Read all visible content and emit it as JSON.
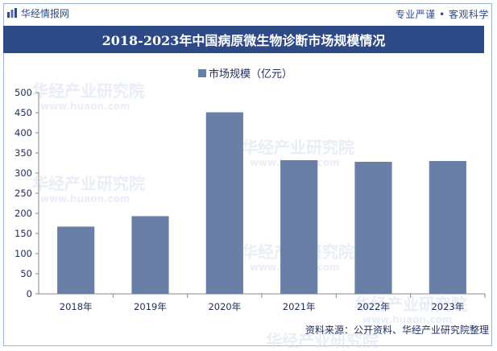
{
  "header": {
    "brand": "华经情报网",
    "slogan": "专业严谨 • 客观科学"
  },
  "watermark": {
    "text": "华经产业研究院",
    "url": "www.huaon.com"
  },
  "footer": {
    "source": "资料来源：公开资料、华经产业研究院整理"
  },
  "colors": {
    "accent": "#2d4a86",
    "bar": "#6a7fa5"
  },
  "chart_data": {
    "type": "bar",
    "title": "2018-2023年中国病原微生物诊断市场规模情况",
    "legend": "市场规模（亿元）",
    "categories": [
      "2018年",
      "2019年",
      "2020年",
      "2021年",
      "2022年",
      "2023年"
    ],
    "values": [
      167,
      193,
      451,
      332,
      328,
      330
    ],
    "ylim": [
      0,
      500
    ],
    "yticks": [
      0,
      50,
      100,
      150,
      200,
      250,
      300,
      350,
      400,
      450,
      500
    ],
    "xlabel": "",
    "ylabel": ""
  }
}
